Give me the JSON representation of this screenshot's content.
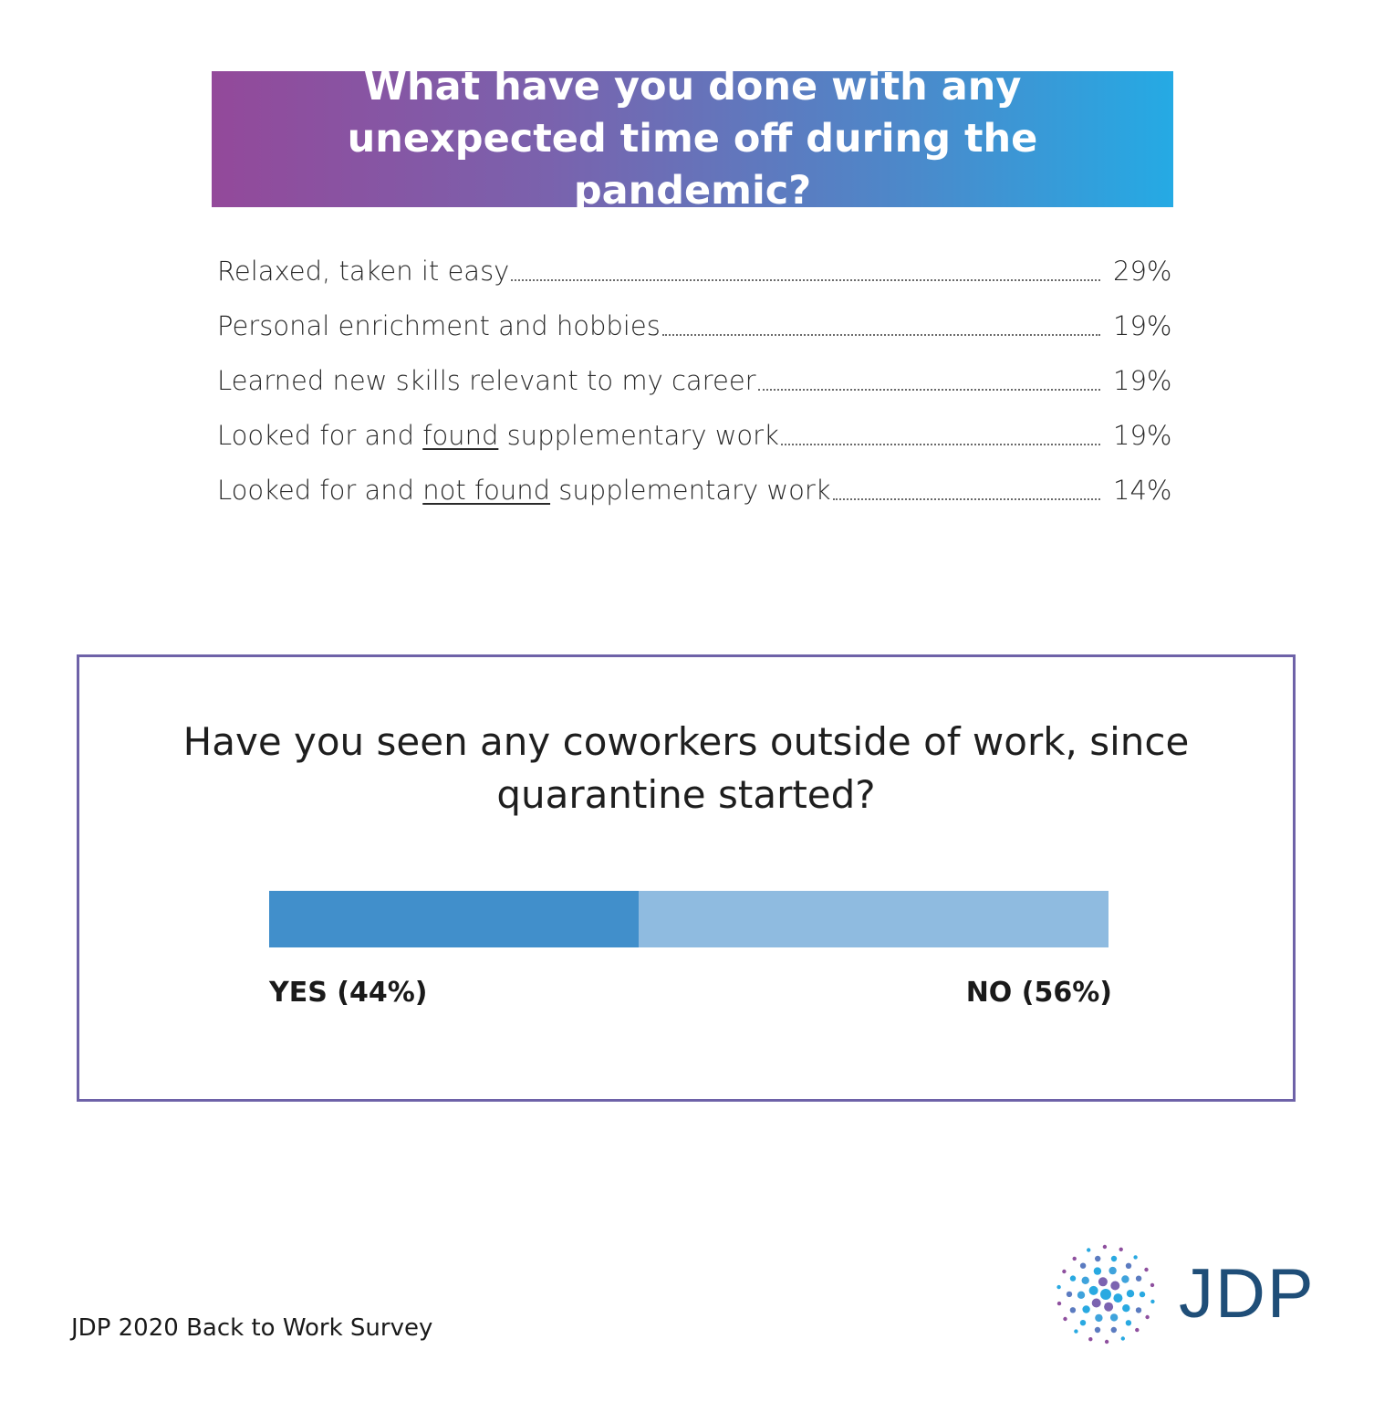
{
  "banner": {
    "title": "What have you done with any unexpected time off during the pandemic?"
  },
  "chart_data": [
    {
      "type": "table",
      "title": "What have you done with any unexpected time off during the pandemic?",
      "categories": [
        "Relaxed, taken it easy",
        "Personal enrichment and hobbies",
        "Learned new skills relevant to my career",
        "Looked for and found supplementary work",
        "Looked for and not found supplementary work"
      ],
      "values": [
        29,
        19,
        19,
        19,
        14
      ],
      "rows": [
        {
          "pre": "Relaxed, taken it easy",
          "u": "",
          "post": "",
          "pct": "29%"
        },
        {
          "pre": "Personal enrichment and hobbies",
          "u": "",
          "post": "",
          "pct": "19%"
        },
        {
          "pre": "Learned new skills relevant to my career",
          "u": "",
          "post": "",
          "pct": "19%"
        },
        {
          "pre": "Looked for and ",
          "u": "found",
          "post": " supplementary work",
          "pct": "19%"
        },
        {
          "pre": "Looked for and ",
          "u": "not found",
          "post": " supplementary work",
          "pct": "14%"
        }
      ]
    },
    {
      "type": "bar",
      "title": "Have you seen any coworkers outside of work, since quarantine started?",
      "categories": [
        "YES",
        "NO"
      ],
      "values": [
        44,
        56
      ],
      "labels": [
        "YES (44%)",
        "NO (56%)"
      ],
      "colors": [
        "#418fcb",
        "#8fbbe0"
      ]
    }
  ],
  "footer": {
    "source": "JDP 2020 Back to Work Survey"
  },
  "logo": {
    "text": "JDP"
  }
}
